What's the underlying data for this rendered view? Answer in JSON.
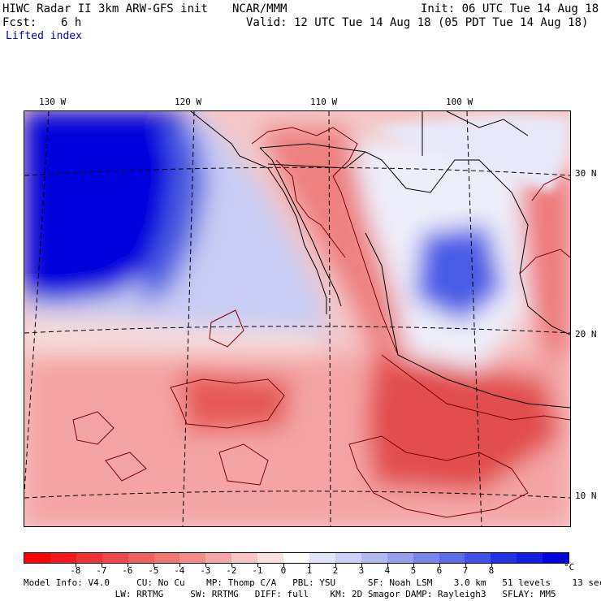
{
  "header": {
    "title_left": "HIWC Radar II 3km ARW-GFS init",
    "title_center": "NCAR/MMM",
    "init": "Init: 06 UTC Tue 14 Aug 18",
    "fcst_label": "Fcst:",
    "fcst_value": "6 h",
    "valid": "Valid: 12 UTC Tue 14 Aug 18 (05 PDT Tue 14 Aug 18)",
    "field_name": "Lifted index"
  },
  "map": {
    "longitude_labels": [
      "130 W",
      "120 W",
      "110 W",
      "100 W"
    ],
    "latitude_labels": [
      "30 N",
      "20 N",
      "10 N"
    ],
    "colors": {
      "strong_stable": "#0000dd",
      "stable": "#8a96ee",
      "neutral": "#f4f0f4",
      "unstable": "#f09090",
      "strong_unstable": "#e04a4a",
      "contour": "#7a0000"
    }
  },
  "scale": {
    "labels": [
      "-8",
      "-7",
      "-6",
      "-5",
      "-4",
      "-3",
      "-2",
      "-1",
      "0",
      "1",
      "2",
      "3",
      "4",
      "5",
      "6",
      "7",
      "8"
    ],
    "unit": "°C",
    "colors": [
      "#ff0000",
      "#f41a1a",
      "#ee3333",
      "#f04848",
      "#f06060",
      "#f27575",
      "#f48c8c",
      "#f6a6a6",
      "#f8c4c4",
      "#fae0e0",
      "#ffffff",
      "#e4e4fa",
      "#ccd0f6",
      "#b2b8f2",
      "#96a0ee",
      "#7b86ec",
      "#5e6cea",
      "#4050e8",
      "#2232e4",
      "#0e1ee4",
      "#0000e0"
    ]
  },
  "info": {
    "line1": "Model Info: V4.0     CU: No Cu    MP: Thomp C/A   PBL: YSU      SF: Noah LSM    3.0 km   51 levels    13 sec",
    "line2": "                 LW: RRTMG     SW: RRTMG   DIFF: full    KM: 2D Smagor DAMP: Rayleigh3   SFLAY: MM5"
  }
}
